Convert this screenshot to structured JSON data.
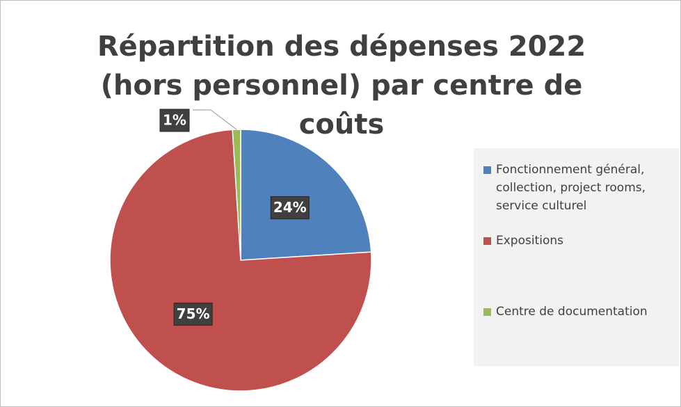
{
  "chart_data": {
    "type": "pie",
    "title": "Répartition des dépenses 2022 (hors personnel) par centre de coûts",
    "categories": [
      "Fonctionnement général, collection, project rooms, service culturel",
      "Expositions",
      "Centre de documentation"
    ],
    "values": [
      24,
      75,
      1
    ],
    "value_labels": [
      "24%",
      "75%",
      "1%"
    ],
    "colors": [
      "#4f81bd",
      "#c0504d",
      "#9bbb59"
    ],
    "legend": "right"
  }
}
